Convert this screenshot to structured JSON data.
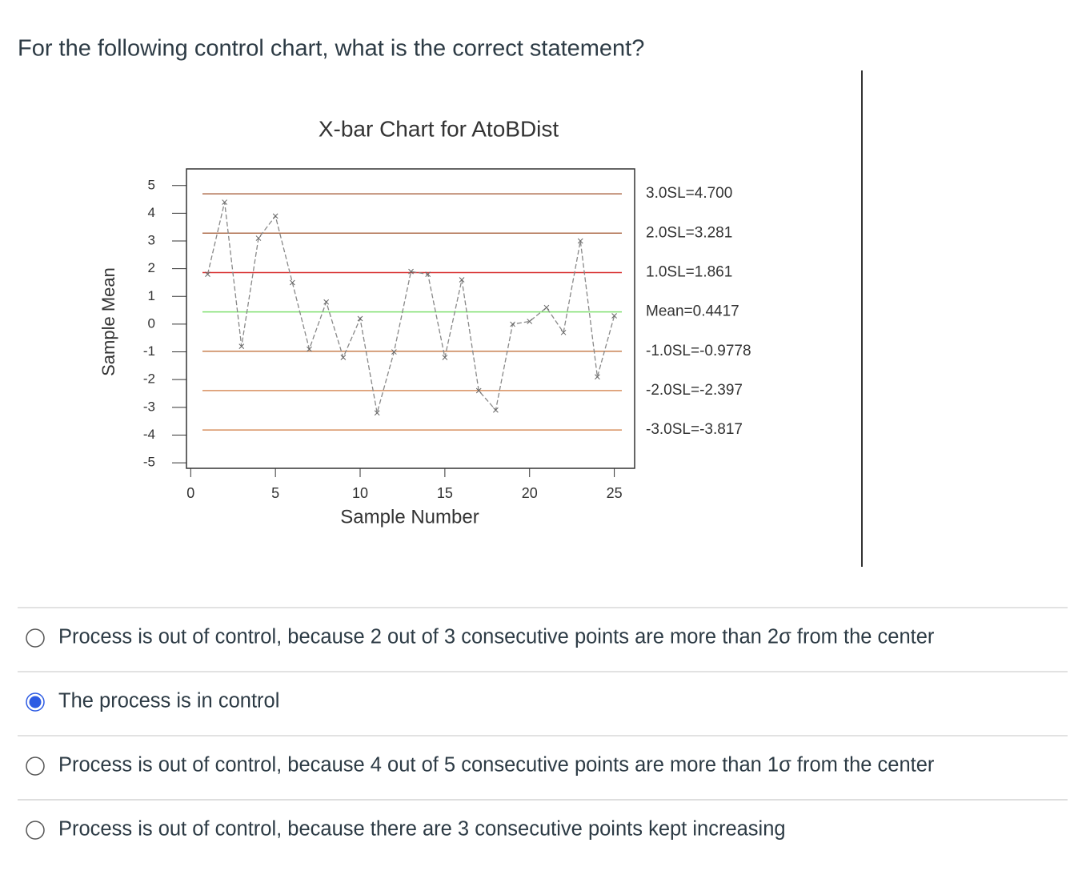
{
  "question": "For the following control chart, what is the correct statement?",
  "chart_data": {
    "type": "line",
    "title": "X-bar Chart for AtoBDist",
    "x_label": "Sample Number",
    "y_label": "Sample Mean",
    "x": [
      1,
      2,
      3,
      4,
      5,
      6,
      7,
      8,
      9,
      10,
      11,
      12,
      13,
      14,
      15,
      16,
      17,
      18,
      19,
      20,
      21,
      22,
      23,
      24,
      25
    ],
    "values": [
      1.8,
      4.4,
      -0.8,
      3.1,
      3.9,
      1.5,
      -0.9,
      0.8,
      -1.2,
      0.2,
      -3.2,
      -1.0,
      1.9,
      1.8,
      -1.2,
      1.6,
      -2.4,
      -3.1,
      0.0,
      0.1,
      0.6,
      -0.3,
      3.0,
      -1.9,
      0.3
    ],
    "color": "#888888",
    "xlim": [
      -0.25,
      26.2
    ],
    "ylim": [
      -5.2,
      5.6
    ],
    "xticks": [
      0,
      5,
      10,
      15,
      20,
      25
    ],
    "yticks": [
      5,
      4,
      3,
      2,
      1,
      0,
      -1,
      -2,
      -3,
      -4,
      -5
    ],
    "control_lines": [
      {
        "value": 4.7,
        "label": "3.0SL=4.700",
        "color": "#b07050"
      },
      {
        "value": 3.281,
        "label": "2.0SL=3.281",
        "color": "#b07050"
      },
      {
        "value": 1.861,
        "label": "1.0SL=1.861",
        "color": "#d83030"
      },
      {
        "value": 0.4417,
        "label": "Mean=0.4417",
        "color": "#80e070"
      },
      {
        "value": -0.9778,
        "label": "-1.0SL=-0.9778",
        "color": "#c88050"
      },
      {
        "value": -2.397,
        "label": "-2.0SL=-2.397",
        "color": "#d89060"
      },
      {
        "value": -3.817,
        "label": "-3.0SL=-3.817",
        "color": "#d89060"
      }
    ]
  },
  "options": [
    {
      "text": "Process is out of control, because 2 out of 3 consecutive points are more than 2σ from the center",
      "selected": false
    },
    {
      "text": "The process is in control",
      "selected": true
    },
    {
      "text": "Process is out of control, because 4 out of 5 consecutive points are more than 1σ from the center",
      "selected": false
    },
    {
      "text": "Process is out of control, because there are 3 consecutive points kept increasing",
      "selected": false
    }
  ]
}
